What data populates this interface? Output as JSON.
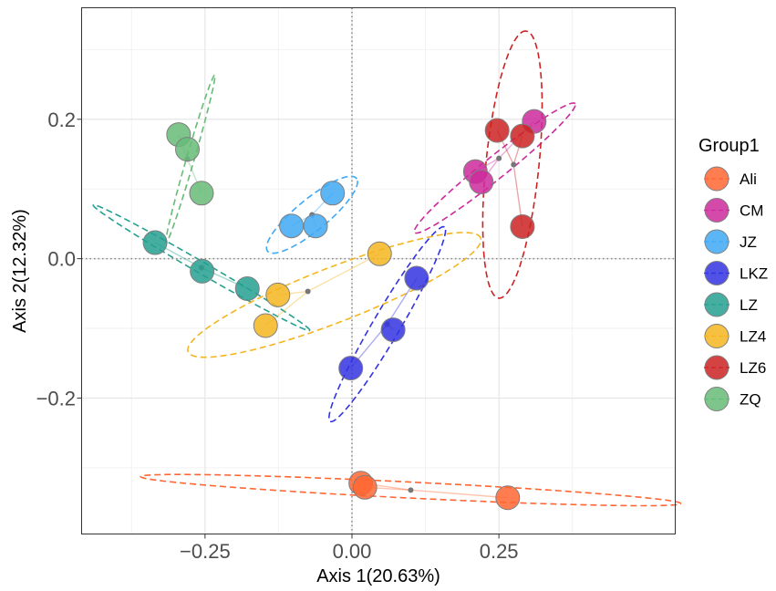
{
  "chart_data": {
    "type": "scatter",
    "xlabel": "Axis 1(20.63%)",
    "ylabel": "Axis 2(12.32%)",
    "xlim": [
      -0.46,
      0.55
    ],
    "ylim": [
      -0.395,
      0.36
    ],
    "xticks": [
      -0.25,
      0.0,
      0.25
    ],
    "xtick_labels": [
      "−0.25",
      "0.00",
      "0.25"
    ],
    "yticks": [
      -0.2,
      0.0,
      0.2
    ],
    "ytick_labels": [
      "−0.2",
      "0.0",
      "0.2"
    ],
    "grid": true,
    "reference_lines": {
      "x": 0,
      "y": 0
    },
    "legend": {
      "title": "Group1",
      "position": "right"
    },
    "series": [
      {
        "name": "Ali",
        "color": "#FF6633",
        "points": [
          [
            0.015,
            -0.322
          ],
          [
            0.022,
            -0.328
          ],
          [
            0.265,
            -0.343
          ]
        ],
        "centroid": [
          0.1,
          -0.332
        ],
        "ellipse": {
          "cx": 0.1,
          "cy": -0.332,
          "rx": 0.46,
          "ry": 0.0115,
          "angle": -2.4
        }
      },
      {
        "name": "CM",
        "color": "#CC2A9C",
        "points": [
          [
            0.31,
            0.197
          ],
          [
            0.21,
            0.125
          ],
          [
            0.22,
            0.11
          ]
        ],
        "centroid": [
          0.25,
          0.144
        ],
        "ellipse": {
          "cx": 0.243,
          "cy": 0.13,
          "rx": 0.165,
          "ry": 0.017,
          "angle": 34
        }
      },
      {
        "name": "JZ",
        "color": "#3FA9F5",
        "points": [
          [
            -0.033,
            0.094
          ],
          [
            -0.062,
            0.047
          ],
          [
            -0.103,
            0.047
          ]
        ],
        "centroid": [
          -0.068,
          0.063
        ],
        "ellipse": {
          "cx": -0.068,
          "cy": 0.063,
          "rx": 0.092,
          "ry": 0.024,
          "angle": 34
        }
      },
      {
        "name": "LKZ",
        "color": "#3333E0",
        "points": [
          [
            0.11,
            -0.028
          ],
          [
            0.07,
            -0.102
          ],
          [
            -0.002,
            -0.157
          ]
        ],
        "centroid": [
          0.06,
          -0.094
        ],
        "ellipse": {
          "cx": 0.06,
          "cy": -0.094,
          "rx": 0.17,
          "ry": 0.022,
          "angle": 55
        }
      },
      {
        "name": "LZ",
        "color": "#24A090",
        "points": [
          [
            -0.335,
            0.023
          ],
          [
            -0.255,
            -0.018
          ],
          [
            -0.178,
            -0.043
          ]
        ],
        "centroid": [
          -0.256,
          -0.013
        ],
        "ellipse": {
          "cx": -0.256,
          "cy": -0.013,
          "rx": 0.205,
          "ry": 0.0085,
          "angle": -26
        }
      },
      {
        "name": "LZ4",
        "color": "#F5B51E",
        "points": [
          [
            0.047,
            0.007
          ],
          [
            -0.126,
            -0.052
          ],
          [
            -0.147,
            -0.096
          ]
        ],
        "centroid": [
          -0.075,
          -0.047
        ],
        "ellipse": {
          "cx": -0.03,
          "cy": -0.052,
          "rx": 0.262,
          "ry": 0.04,
          "angle": 18
        }
      },
      {
        "name": "LZ6",
        "color": "#CC2222",
        "points": [
          [
            0.247,
            0.184
          ],
          [
            0.29,
            0.176
          ],
          [
            0.29,
            0.046
          ]
        ],
        "centroid": [
          0.275,
          0.135
        ],
        "ellipse": {
          "cx": 0.273,
          "cy": 0.135,
          "rx": 0.193,
          "ry": 0.045,
          "angle": 83
        }
      },
      {
        "name": "ZQ",
        "color": "#66BB77",
        "points": [
          [
            -0.295,
            0.178
          ],
          [
            -0.28,
            0.157
          ],
          [
            -0.256,
            0.094
          ]
        ],
        "centroid": [
          -0.28,
          0.143
        ],
        "ellipse": {
          "cx": -0.275,
          "cy": 0.143,
          "rx": 0.127,
          "ry": 0.0065,
          "angle": 71
        }
      }
    ]
  }
}
